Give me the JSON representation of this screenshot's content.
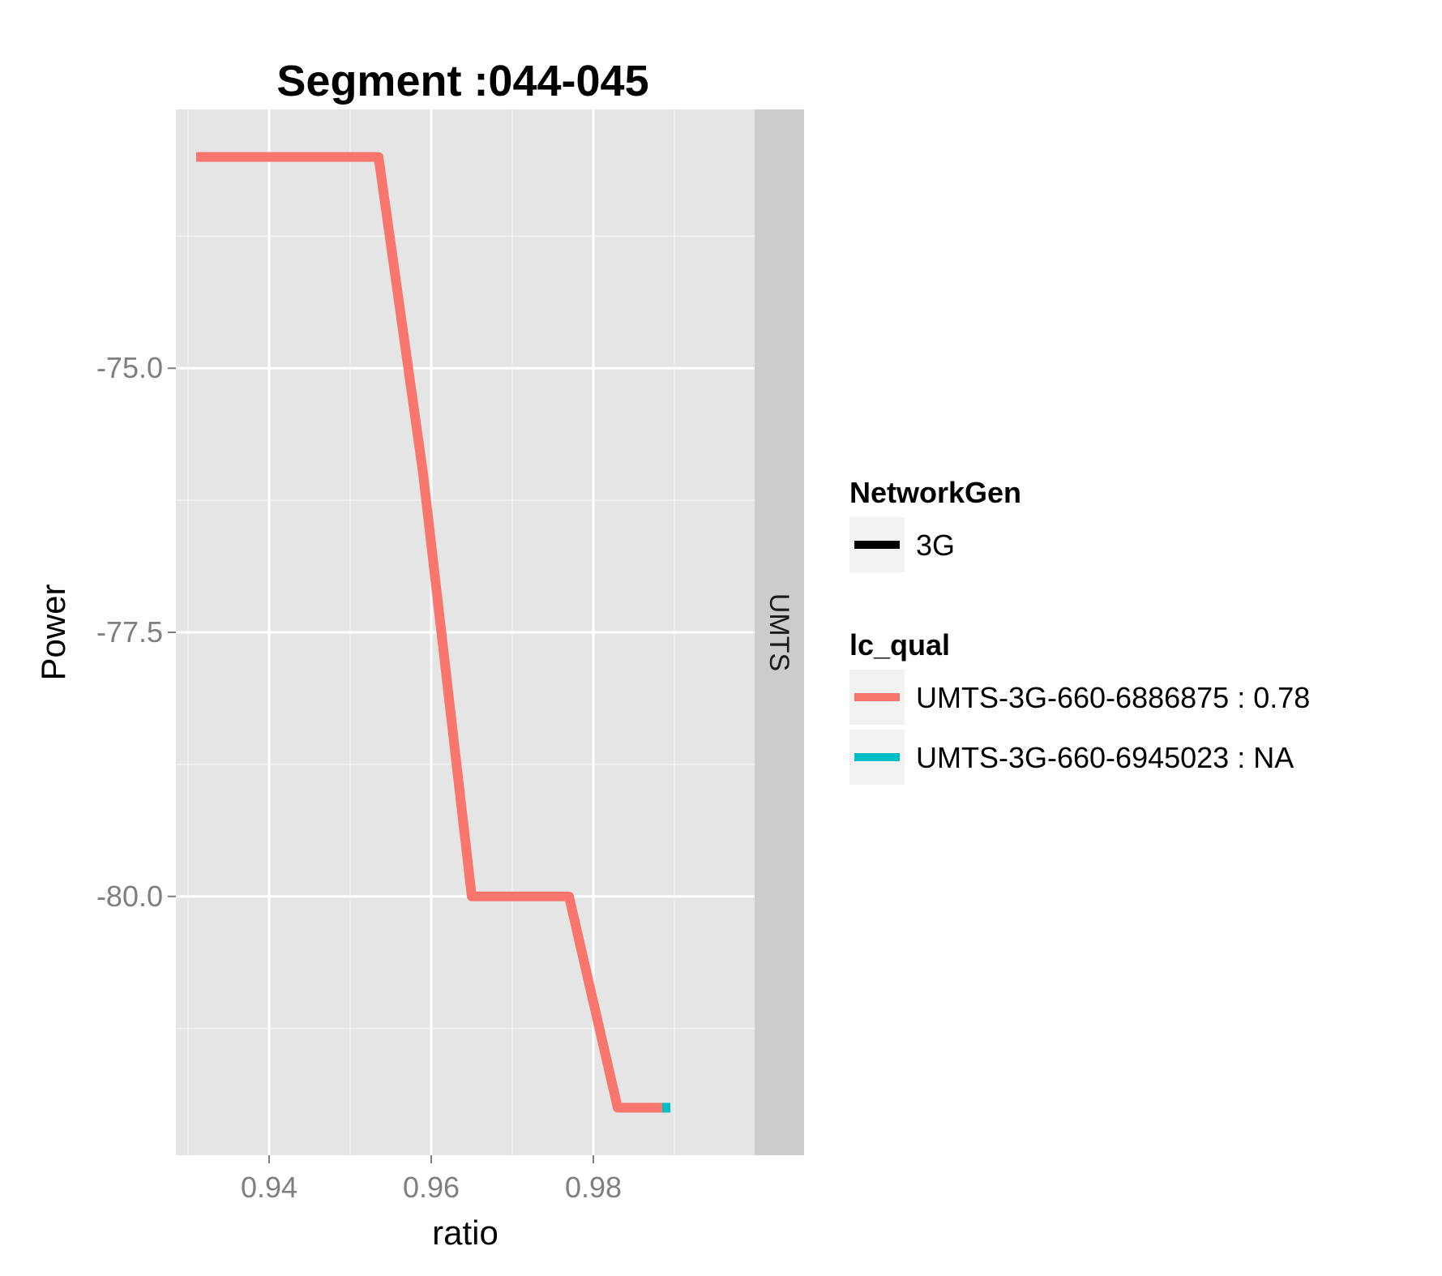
{
  "chart_data": {
    "type": "line",
    "title": "Segment :044-045",
    "xlabel": "ratio",
    "ylabel": "Power",
    "xlim": [
      0.9285,
      0.9999
    ],
    "ylim": [
      -82.45,
      -72.55
    ],
    "x_ticks": [
      0.94,
      0.96,
      0.98
    ],
    "x_tick_labels": [
      "0.94",
      "0.96",
      "0.98"
    ],
    "y_ticks": [
      -75.0,
      -77.5,
      -80.0
    ],
    "y_tick_labels": [
      "-75.0",
      "-77.5",
      "-80.0"
    ],
    "x_minor_ticks": [
      0.93,
      0.95,
      0.97,
      0.99
    ],
    "y_minor_ticks": [
      -73.75,
      -76.25,
      -78.75,
      -81.25
    ],
    "grid": true,
    "facet_strip": "UMTS",
    "legend_position": "right",
    "series": [
      {
        "name": "UMTS-3G-660-6886875 : 0.78",
        "color": "#F8766D",
        "points": [
          [
            0.931,
            -73.0
          ],
          [
            0.9535,
            -73.0
          ],
          [
            0.959,
            -76.0
          ],
          [
            0.965,
            -80.0
          ],
          [
            0.977,
            -80.0
          ],
          [
            0.983,
            -82.0
          ],
          [
            0.9885,
            -82.0
          ]
        ]
      },
      {
        "name": "UMTS-3G-660-6945023 : NA",
        "color": "#00BFC4",
        "points": [
          [
            0.9885,
            -82.0
          ],
          [
            0.9895,
            -82.0
          ]
        ]
      }
    ],
    "legends": [
      {
        "title": "NetworkGen",
        "items": [
          {
            "label": "3G",
            "color": "#000000"
          }
        ]
      },
      {
        "title": "lc_qual",
        "items": [
          {
            "label": "UMTS-3G-660-6886875 : 0.78",
            "color": "#F8766D"
          },
          {
            "label": "UMTS-3G-660-6945023 : NA",
            "color": "#00BFC4"
          }
        ]
      }
    ]
  }
}
